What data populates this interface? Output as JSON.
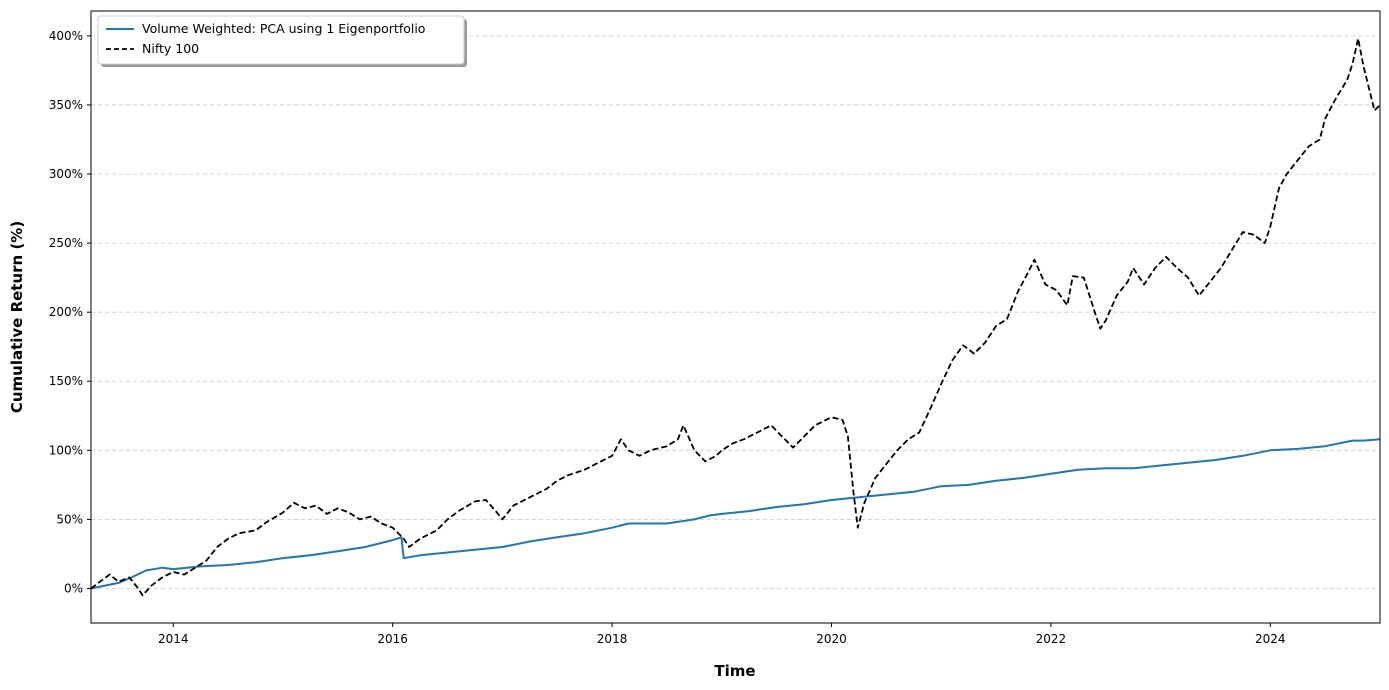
{
  "chart_data": {
    "type": "line",
    "title": "",
    "xlabel": "Time",
    "ylabel": "Cumulative Return (%)",
    "xlim": [
      2013.25,
      2025.0
    ],
    "ylim": [
      -25,
      418
    ],
    "x_ticks": [
      2014,
      2016,
      2018,
      2020,
      2022,
      2024
    ],
    "x_tick_labels": [
      "2014",
      "2016",
      "2018",
      "2020",
      "2022",
      "2024"
    ],
    "y_ticks": [
      0,
      50,
      100,
      150,
      200,
      250,
      300,
      350,
      400
    ],
    "y_tick_labels": [
      "0%",
      "50%",
      "100%",
      "150%",
      "200%",
      "250%",
      "300%",
      "350%",
      "400%"
    ],
    "grid": "horizontal dashed",
    "legend": "top-left",
    "series": [
      {
        "name": "Volume Weighted: PCA using 1 Eigenportfolio",
        "color": "#1f77b4",
        "style": "solid",
        "points": [
          [
            2013.25,
            0
          ],
          [
            2013.5,
            4
          ],
          [
            2013.62,
            8
          ],
          [
            2013.75,
            13
          ],
          [
            2013.9,
            15
          ],
          [
            2014.0,
            14
          ],
          [
            2014.25,
            16
          ],
          [
            2014.5,
            17
          ],
          [
            2014.75,
            19
          ],
          [
            2015.0,
            22
          ],
          [
            2015.25,
            24
          ],
          [
            2015.5,
            27
          ],
          [
            2015.75,
            30
          ],
          [
            2016.0,
            35
          ],
          [
            2016.08,
            37
          ],
          [
            2016.1,
            22
          ],
          [
            2016.25,
            24
          ],
          [
            2016.5,
            26
          ],
          [
            2016.75,
            28
          ],
          [
            2017.0,
            30
          ],
          [
            2017.25,
            34
          ],
          [
            2017.5,
            37
          ],
          [
            2017.75,
            40
          ],
          [
            2018.0,
            44
          ],
          [
            2018.15,
            47
          ],
          [
            2018.25,
            47
          ],
          [
            2018.5,
            47
          ],
          [
            2018.75,
            50
          ],
          [
            2018.9,
            53
          ],
          [
            2019.0,
            54
          ],
          [
            2019.25,
            56
          ],
          [
            2019.5,
            59
          ],
          [
            2019.75,
            61
          ],
          [
            2020.0,
            64
          ],
          [
            2020.25,
            66
          ],
          [
            2020.5,
            68
          ],
          [
            2020.75,
            70
          ],
          [
            2021.0,
            74
          ],
          [
            2021.25,
            75
          ],
          [
            2021.5,
            78
          ],
          [
            2021.75,
            80
          ],
          [
            2022.0,
            83
          ],
          [
            2022.25,
            86
          ],
          [
            2022.5,
            87
          ],
          [
            2022.75,
            87
          ],
          [
            2023.0,
            89
          ],
          [
            2023.25,
            91
          ],
          [
            2023.5,
            93
          ],
          [
            2023.75,
            96
          ],
          [
            2024.0,
            100
          ],
          [
            2024.25,
            101
          ],
          [
            2024.5,
            103
          ],
          [
            2024.75,
            107
          ],
          [
            2024.85,
            107
          ],
          [
            2025.0,
            108
          ]
        ]
      },
      {
        "name": "Nifty 100",
        "color": "#000000",
        "style": "dashed",
        "points": [
          [
            2013.25,
            0
          ],
          [
            2013.35,
            6
          ],
          [
            2013.42,
            10
          ],
          [
            2013.5,
            5
          ],
          [
            2013.6,
            8
          ],
          [
            2013.68,
            0
          ],
          [
            2013.72,
            -5
          ],
          [
            2013.8,
            2
          ],
          [
            2013.9,
            8
          ],
          [
            2014.0,
            12
          ],
          [
            2014.1,
            10
          ],
          [
            2014.2,
            15
          ],
          [
            2014.3,
            20
          ],
          [
            2014.4,
            30
          ],
          [
            2014.5,
            36
          ],
          [
            2014.6,
            40
          ],
          [
            2014.75,
            42
          ],
          [
            2014.85,
            48
          ],
          [
            2015.0,
            55
          ],
          [
            2015.1,
            62
          ],
          [
            2015.2,
            58
          ],
          [
            2015.3,
            60
          ],
          [
            2015.4,
            54
          ],
          [
            2015.5,
            58
          ],
          [
            2015.6,
            55
          ],
          [
            2015.7,
            50
          ],
          [
            2015.8,
            52
          ],
          [
            2015.9,
            47
          ],
          [
            2016.0,
            44
          ],
          [
            2016.1,
            36
          ],
          [
            2016.15,
            30
          ],
          [
            2016.25,
            36
          ],
          [
            2016.4,
            42
          ],
          [
            2016.5,
            50
          ],
          [
            2016.6,
            56
          ],
          [
            2016.75,
            63
          ],
          [
            2016.85,
            64
          ],
          [
            2016.95,
            55
          ],
          [
            2017.0,
            50
          ],
          [
            2017.1,
            60
          ],
          [
            2017.25,
            66
          ],
          [
            2017.4,
            72
          ],
          [
            2017.5,
            78
          ],
          [
            2017.6,
            82
          ],
          [
            2017.75,
            86
          ],
          [
            2017.85,
            90
          ],
          [
            2018.0,
            96
          ],
          [
            2018.08,
            108
          ],
          [
            2018.15,
            100
          ],
          [
            2018.25,
            96
          ],
          [
            2018.35,
            100
          ],
          [
            2018.5,
            103
          ],
          [
            2018.6,
            108
          ],
          [
            2018.65,
            118
          ],
          [
            2018.75,
            100
          ],
          [
            2018.85,
            92
          ],
          [
            2018.95,
            96
          ],
          [
            2019.0,
            100
          ],
          [
            2019.1,
            105
          ],
          [
            2019.2,
            108
          ],
          [
            2019.35,
            114
          ],
          [
            2019.45,
            118
          ],
          [
            2019.55,
            110
          ],
          [
            2019.65,
            102
          ],
          [
            2019.75,
            110
          ],
          [
            2019.85,
            118
          ],
          [
            2020.0,
            124
          ],
          [
            2020.1,
            122
          ],
          [
            2020.15,
            110
          ],
          [
            2020.2,
            70
          ],
          [
            2020.24,
            44
          ],
          [
            2020.3,
            62
          ],
          [
            2020.4,
            80
          ],
          [
            2020.5,
            90
          ],
          [
            2020.6,
            100
          ],
          [
            2020.7,
            108
          ],
          [
            2020.8,
            113
          ],
          [
            2020.9,
            130
          ],
          [
            2021.0,
            148
          ],
          [
            2021.1,
            165
          ],
          [
            2021.2,
            176
          ],
          [
            2021.3,
            170
          ],
          [
            2021.4,
            178
          ],
          [
            2021.5,
            190
          ],
          [
            2021.6,
            195
          ],
          [
            2021.7,
            215
          ],
          [
            2021.8,
            230
          ],
          [
            2021.85,
            238
          ],
          [
            2021.95,
            220
          ],
          [
            2022.05,
            216
          ],
          [
            2022.15,
            205
          ],
          [
            2022.2,
            226
          ],
          [
            2022.3,
            225
          ],
          [
            2022.4,
            200
          ],
          [
            2022.45,
            188
          ],
          [
            2022.5,
            194
          ],
          [
            2022.6,
            212
          ],
          [
            2022.7,
            222
          ],
          [
            2022.75,
            232
          ],
          [
            2022.85,
            220
          ],
          [
            2022.95,
            232
          ],
          [
            2023.05,
            240
          ],
          [
            2023.15,
            232
          ],
          [
            2023.25,
            225
          ],
          [
            2023.35,
            212
          ],
          [
            2023.45,
            222
          ],
          [
            2023.55,
            232
          ],
          [
            2023.65,
            245
          ],
          [
            2023.75,
            258
          ],
          [
            2023.85,
            256
          ],
          [
            2023.95,
            250
          ],
          [
            2024.0,
            262
          ],
          [
            2024.08,
            290
          ],
          [
            2024.15,
            300
          ],
          [
            2024.25,
            310
          ],
          [
            2024.35,
            320
          ],
          [
            2024.45,
            325
          ],
          [
            2024.5,
            340
          ],
          [
            2024.6,
            355
          ],
          [
            2024.7,
            368
          ],
          [
            2024.75,
            380
          ],
          [
            2024.8,
            398
          ],
          [
            2024.85,
            378
          ],
          [
            2024.9,
            362
          ],
          [
            2024.95,
            346
          ],
          [
            2025.0,
            350
          ]
        ]
      }
    ]
  }
}
